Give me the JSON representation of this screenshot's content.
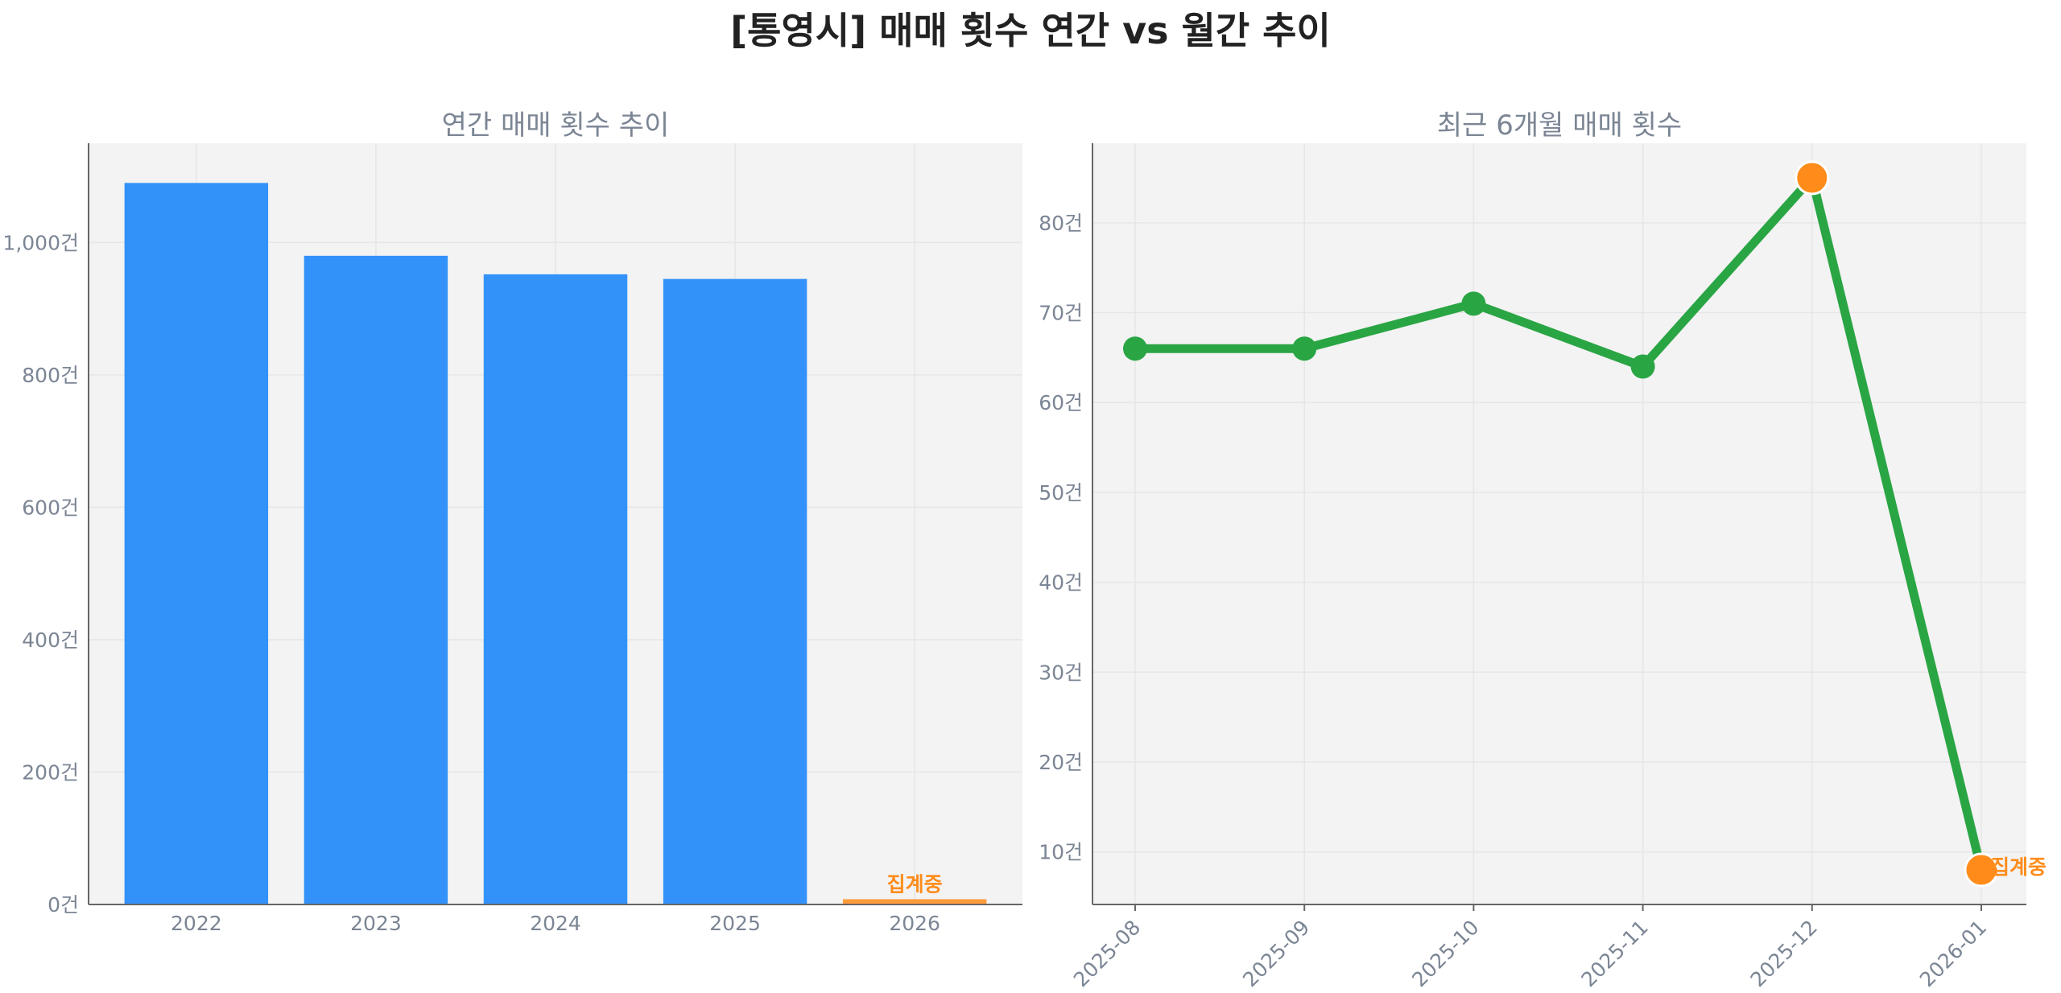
{
  "title": "[통영시] 매매 횟수 연간 vs 월간 추이",
  "colors": {
    "bar": "#3292f9",
    "partial": "#ff8c1a",
    "line": "#2aa544",
    "grid": "#e6e6e6",
    "panel": "#f3f3f3"
  },
  "chart_data": [
    {
      "type": "bar",
      "title": "연간 매매 횟수 추이",
      "categories": [
        "2022",
        "2023",
        "2024",
        "2025",
        "2026"
      ],
      "values": [
        1090,
        980,
        952,
        945,
        8
      ],
      "ylim": [
        0,
        1150
      ],
      "yticks": [
        0,
        200,
        400,
        600,
        800,
        1000
      ],
      "ytick_labels": [
        "0건",
        "200건",
        "400건",
        "600건",
        "800건",
        "1,000건"
      ],
      "grid": true,
      "partial_index": 4,
      "annotation": "집계중"
    },
    {
      "type": "line",
      "title": "최근 6개월 매매 횟수",
      "x": [
        "2025-08",
        "2025-09",
        "2025-10",
        "2025-11",
        "2025-12",
        "2026-01"
      ],
      "values": [
        66,
        66,
        71,
        64,
        85,
        8
      ],
      "ylim": [
        4.15,
        88.85
      ],
      "yticks": [
        10,
        20,
        30,
        40,
        50,
        60,
        70,
        80
      ],
      "ytick_labels": [
        "10건",
        "20건",
        "30건",
        "40건",
        "50건",
        "60건",
        "70건",
        "80건"
      ],
      "grid": true,
      "highlight_indices": [
        4,
        5
      ],
      "annotation": "집계중"
    }
  ]
}
